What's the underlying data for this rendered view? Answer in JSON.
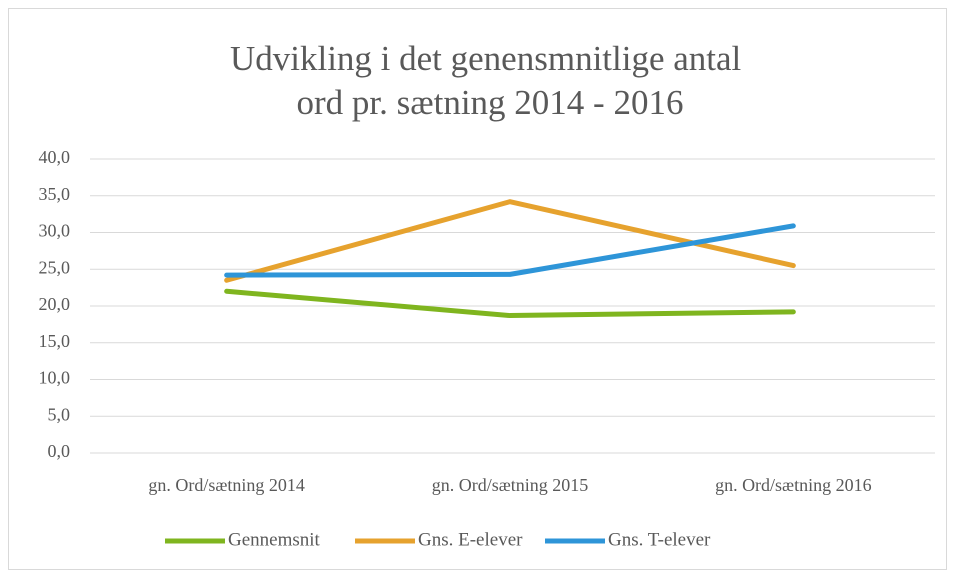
{
  "chart_data": {
    "type": "line",
    "title": [
      "Udvikling i det genensmnitlige antal",
      "ord pr. sætning 2014 - 2016"
    ],
    "categories": [
      "gn. Ord/sætning 2014",
      "gn. Ord/sætning 2015",
      "gn. Ord/sætning 2016"
    ],
    "series": [
      {
        "name": "Gennemsnit",
        "color": "#7fb51f",
        "values": [
          22.0,
          18.7,
          19.2
        ]
      },
      {
        "name": "Gns. E-elever",
        "color": "#e6a22e",
        "values": [
          23.5,
          34.2,
          25.5
        ]
      },
      {
        "name": "Gns. T-elever",
        "color": "#2e95d8",
        "values": [
          24.2,
          24.3,
          30.9
        ]
      }
    ],
    "ylim": [
      0,
      40
    ],
    "yticks": [
      {
        "value": 0,
        "label": "0,0"
      },
      {
        "value": 5,
        "label": "5,0"
      },
      {
        "value": 10,
        "label": "10,0"
      },
      {
        "value": 15,
        "label": "15,0"
      },
      {
        "value": 20,
        "label": "20,0"
      },
      {
        "value": 25,
        "label": "25,0"
      },
      {
        "value": 30,
        "label": "30,0"
      },
      {
        "value": 35,
        "label": "35,0"
      },
      {
        "value": 40,
        "label": "40,0"
      }
    ],
    "grid": true,
    "legend": "bottom"
  }
}
